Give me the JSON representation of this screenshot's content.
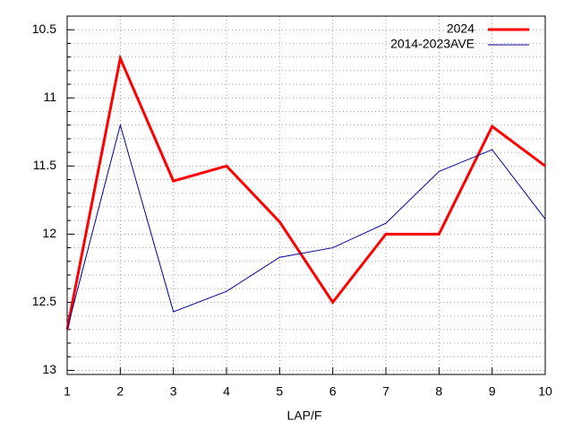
{
  "chart_data": {
    "type": "line",
    "x_label": "LAP/F",
    "x": [
      1,
      2,
      3,
      4,
      5,
      6,
      7,
      8,
      9,
      10
    ],
    "series": [
      {
        "name": "2024",
        "color": "#ff0000",
        "width": 3,
        "values": [
          12.7,
          10.71,
          11.61,
          11.5,
          11.91,
          12.5,
          12.0,
          12.0,
          11.21,
          11.5
        ]
      },
      {
        "name": "2014-2023AVE",
        "color": "#000099",
        "width": 1,
        "values": [
          12.7,
          11.2,
          12.57,
          12.42,
          12.17,
          12.1,
          11.92,
          11.54,
          11.38,
          11.89
        ]
      }
    ],
    "xlim": [
      1,
      10
    ],
    "xticks": [
      1,
      2,
      3,
      4,
      5,
      6,
      7,
      8,
      9,
      10
    ],
    "ylim": [
      13.03,
      10.4
    ],
    "yticks": [
      {
        "value": 10.5,
        "label": "10.5"
      },
      11,
      11.5,
      12,
      12.5,
      13
    ],
    "yminorticks": [
      10.6,
      10.7,
      10.8,
      10.9,
      11.1,
      11.2,
      11.3,
      11.4,
      11.6,
      11.7,
      11.8,
      11.9,
      12.1,
      12.2,
      12.3,
      12.4,
      12.6,
      12.7,
      12.8,
      12.9
    ],
    "grid": true,
    "legend": "top-right"
  }
}
